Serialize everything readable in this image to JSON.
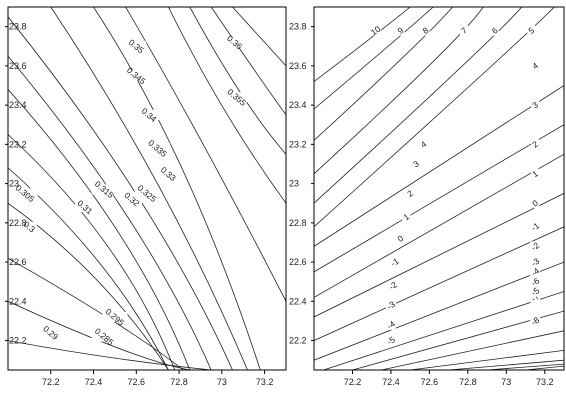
{
  "chart_data": [
    {
      "type": "contour",
      "xlim": [
        72.0,
        73.3
      ],
      "ylim": [
        22.05,
        23.9
      ],
      "x_ticks": [
        72.2,
        72.4,
        72.6,
        72.8,
        73.0,
        73.2
      ],
      "x_tick_labels": [
        "72.2",
        "72.4",
        "72.6",
        "72.8",
        "73",
        "73.2"
      ],
      "y_ticks": [
        22.2,
        22.4,
        22.6,
        22.8,
        23.0,
        23.2,
        23.4,
        23.6,
        23.8
      ],
      "y_tick_labels": [
        "22.2",
        "22.4",
        "22.6",
        "22.8",
        "23",
        "23.2",
        "23.4",
        "23.6",
        "23.8"
      ],
      "y_ticks_side": "left",
      "levels": [
        {
          "value": 0.285,
          "label": "0.285",
          "line": [
            [
              72.0,
              22.2
            ],
            [
              72.5,
              22.1
            ],
            [
              72.95,
              22.05
            ]
          ],
          "label_at": [
            72.45,
            22.22
          ]
        },
        {
          "value": 0.29,
          "label": "0.29",
          "line": [
            [
              72.0,
              22.4
            ],
            [
              72.6,
              22.1
            ],
            [
              72.85,
              22.05
            ]
          ],
          "label_at": [
            72.2,
            22.24
          ]
        },
        {
          "value": 0.295,
          "label": "0.295",
          "line": [
            [
              72.0,
              22.62
            ],
            [
              72.55,
              22.28
            ],
            [
              72.82,
              22.05
            ]
          ],
          "label_at": [
            72.5,
            22.32
          ]
        },
        {
          "value": 0.3,
          "label": "0.3",
          "line": [
            [
              72.0,
              22.9
            ],
            [
              72.45,
              22.55
            ],
            [
              72.75,
              22.05
            ]
          ],
          "label_at": [
            72.1,
            22.78
          ]
        },
        {
          "value": 0.305,
          "label": "0.305",
          "line": [
            [
              72.0,
              23.08
            ],
            [
              72.5,
              22.6
            ],
            [
              72.75,
              22.05
            ]
          ],
          "label_at": [
            72.08,
            22.95
          ]
        },
        {
          "value": 0.31,
          "label": "0.31",
          "line": [
            [
              72.0,
              23.25
            ],
            [
              72.55,
              22.7
            ],
            [
              72.78,
              22.05
            ]
          ],
          "label_at": [
            72.36,
            22.88
          ]
        },
        {
          "value": 0.315,
          "label": "0.315",
          "line": [
            [
              72.0,
              23.48
            ],
            [
              72.6,
              22.75
            ],
            [
              72.85,
              22.05
            ]
          ],
          "label_at": [
            72.45,
            22.97
          ]
        },
        {
          "value": 0.32,
          "label": "0.32",
          "line": [
            [
              72.0,
              23.65
            ],
            [
              72.65,
              22.8
            ],
            [
              72.95,
              22.05
            ]
          ],
          "label_at": [
            72.58,
            22.92
          ]
        },
        {
          "value": 0.325,
          "label": "0.325",
          "line": [
            [
              72.0,
              23.85
            ],
            [
              72.7,
              22.9
            ],
            [
              73.05,
              22.05
            ]
          ],
          "label_at": [
            72.65,
            22.95
          ]
        },
        {
          "value": 0.33,
          "label": "0.33",
          "line": [
            [
              72.2,
              23.9
            ],
            [
              72.75,
              23.0
            ],
            [
              73.12,
              22.05
            ]
          ],
          "label_at": [
            72.75,
            23.05
          ]
        },
        {
          "value": 0.335,
          "label": "0.335",
          "line": [
            [
              72.4,
              23.9
            ],
            [
              72.85,
              23.15
            ],
            [
              73.18,
              22.05
            ]
          ],
          "label_at": [
            72.7,
            23.18
          ]
        },
        {
          "value": 0.34,
          "label": "0.34",
          "line": [
            [
              72.55,
              23.9
            ],
            [
              72.9,
              23.25
            ],
            [
              73.3,
              22.4
            ]
          ],
          "label_at": [
            72.66,
            23.35
          ]
        },
        {
          "value": 0.345,
          "label": "0.345",
          "line": [
            [
              72.75,
              23.9
            ],
            [
              73.0,
              23.35
            ],
            [
              73.3,
              22.9
            ]
          ],
          "label_at": [
            72.6,
            23.55
          ]
        },
        {
          "value": 0.35,
          "label": "0.35",
          "line": [
            [
              72.85,
              23.9
            ],
            [
              73.1,
              23.4
            ],
            [
              73.3,
              23.15
            ]
          ],
          "label_at": [
            72.6,
            23.7
          ]
        },
        {
          "value": 0.355,
          "label": "0.355",
          "line": [
            [
              72.95,
              23.9
            ],
            [
              73.2,
              23.5
            ],
            [
              73.3,
              23.35
            ]
          ],
          "label_at": [
            73.07,
            23.44
          ]
        },
        {
          "value": 0.36,
          "label": "0.36",
          "line": [
            [
              73.05,
              23.9
            ],
            [
              73.3,
              23.6
            ]
          ],
          "label_at": [
            73.06,
            23.72
          ]
        }
      ]
    },
    {
      "type": "contour",
      "xlim": [
        72.0,
        73.3
      ],
      "ylim": [
        22.05,
        23.9
      ],
      "x_ticks": [
        72.2,
        72.4,
        72.6,
        72.8,
        73.0,
        73.2
      ],
      "x_tick_labels": [
        "72.2",
        "72.4",
        "72.6",
        "72.8",
        "73",
        "73.2"
      ],
      "y_ticks": [
        22.2,
        22.4,
        22.6,
        22.8,
        23.0,
        23.2,
        23.4,
        23.6,
        23.8
      ],
      "y_tick_labels": [
        "22.2",
        "22.4",
        "22.6",
        "22.8",
        "23",
        "23.2",
        "23.4",
        "23.6",
        "23.8"
      ],
      "y_ticks_side": "right",
      "levels": [
        {
          "value": 10,
          "label": "10",
          "line": [
            [
              72.0,
              23.52
            ],
            [
              72.35,
              23.78
            ],
            [
              72.5,
              23.9
            ]
          ],
          "label_at": [
            72.32,
            23.78
          ]
        },
        {
          "value": 9,
          "label": "9",
          "line": [
            [
              72.0,
              23.38
            ],
            [
              72.45,
              23.75
            ],
            [
              72.62,
              23.9
            ]
          ],
          "label_at": [
            72.45,
            23.78
          ]
        },
        {
          "value": 8,
          "label": "8",
          "line": [
            [
              72.0,
              23.22
            ],
            [
              72.6,
              23.76
            ],
            [
              72.72,
              23.9
            ]
          ],
          "label_at": [
            72.58,
            23.78
          ]
        },
        {
          "value": 7,
          "label": "7",
          "line": [
            [
              72.0,
              23.05
            ],
            [
              72.78,
              23.75
            ],
            [
              72.88,
              23.9
            ]
          ],
          "label_at": [
            72.78,
            23.78
          ]
        },
        {
          "value": 6,
          "label": "6",
          "line": [
            [
              72.0,
              22.9
            ],
            [
              72.95,
              23.75
            ],
            [
              73.08,
              23.9
            ]
          ],
          "label_at": [
            72.94,
            23.78
          ]
        },
        {
          "value": 5,
          "label": "5",
          "line": [
            [
              72.0,
              22.78
            ],
            [
              73.1,
              23.75
            ],
            [
              73.25,
              23.9
            ]
          ],
          "label_at": [
            73.13,
            23.78
          ]
        },
        {
          "value": 4,
          "label": "4",
          "line": [
            [
              72.0,
              22.68
            ],
            [
              73.3,
              23.5
            ]
          ],
          "label_at": [
            72.57,
            23.2
          ]
        },
        {
          "value": 3,
          "label": "3",
          "line": [
            [
              72.0,
              22.55
            ],
            [
              73.3,
              23.3
            ]
          ],
          "label_at": [
            72.53,
            23.1
          ]
        },
        {
          "value": 2,
          "label": "2",
          "line": [
            [
              72.0,
              22.42
            ],
            [
              73.3,
              23.15
            ]
          ],
          "label_at": [
            72.5,
            22.95
          ]
        },
        {
          "value": 1,
          "label": "1",
          "line": [
            [
              72.0,
              22.32
            ],
            [
              73.3,
              22.95
            ]
          ],
          "label_at": [
            72.48,
            22.83
          ]
        },
        {
          "value": 0,
          "label": "0",
          "line": [
            [
              72.0,
              22.2
            ],
            [
              73.3,
              22.78
            ]
          ],
          "label_at": [
            72.45,
            22.72
          ]
        },
        {
          "value": -1,
          "label": "-1",
          "line": [
            [
              72.0,
              22.1
            ],
            [
              73.3,
              22.6
            ]
          ],
          "label_at": [
            72.42,
            22.6
          ]
        },
        {
          "value": -2,
          "label": "-2",
          "line": [
            [
              72.05,
              22.05
            ],
            [
              73.3,
              22.45
            ]
          ],
          "label_at": [
            72.41,
            22.48
          ]
        },
        {
          "value": -3,
          "label": "-3",
          "line": [
            [
              72.2,
              22.05
            ],
            [
              73.3,
              22.35
            ]
          ],
          "label_at": [
            72.4,
            22.38
          ]
        },
        {
          "value": -4,
          "label": "-4",
          "line": [
            [
              72.35,
              22.05
            ],
            [
              73.3,
              22.25
            ]
          ],
          "label_at": [
            72.4,
            22.28
          ]
        },
        {
          "value": -5,
          "label": "-5",
          "line": [
            [
              72.5,
              22.05
            ],
            [
              73.3,
              22.15
            ]
          ],
          "label_at": [
            72.4,
            22.2
          ]
        },
        {
          "value": -6,
          "label": "-6",
          "line": [
            [
              72.7,
              22.05
            ],
            [
              73.3,
              22.1
            ]
          ],
          "label_at": [
            73.15,
            22.5
          ]
        },
        {
          "value": -7,
          "label": "-7",
          "line": [
            [
              72.9,
              22.05
            ],
            [
              73.3,
              22.08
            ]
          ],
          "label_at": [
            73.15,
            22.42
          ]
        },
        {
          "value": -8,
          "label": "-8",
          "line": [
            [
              73.1,
              22.05
            ],
            [
              73.3,
              22.07
            ]
          ],
          "label_at": [
            73.15,
            22.3
          ]
        }
      ],
      "extra_labels": [
        {
          "label": "4",
          "at": [
            73.15,
            23.6
          ]
        },
        {
          "label": "3",
          "at": [
            73.15,
            23.4
          ]
        },
        {
          "label": "2",
          "at": [
            73.15,
            23.2
          ]
        },
        {
          "label": "1",
          "at": [
            73.15,
            23.05
          ]
        },
        {
          "label": "0",
          "at": [
            73.15,
            22.9
          ]
        },
        {
          "label": "-1",
          "at": [
            73.15,
            22.78
          ]
        },
        {
          "label": "-2",
          "at": [
            73.15,
            22.68
          ]
        },
        {
          "label": "-3",
          "at": [
            73.15,
            22.6
          ]
        },
        {
          "label": "-4",
          "at": [
            73.15,
            22.55
          ]
        },
        {
          "label": "-5",
          "at": [
            73.15,
            22.45
          ]
        }
      ]
    }
  ]
}
